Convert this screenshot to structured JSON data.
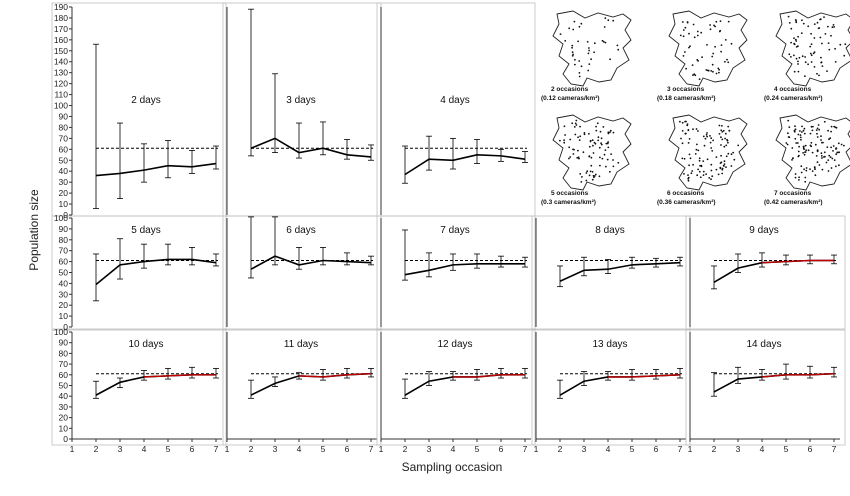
{
  "figure": {
    "ylabel": "Population size",
    "xlabel": "Sampling occasion",
    "colors": {
      "line": "#000000",
      "highlight": "#c00000",
      "frame": "#bfbfbf",
      "reference": "#000000"
    }
  },
  "maps": [
    {
      "caption1": "2 occasions",
      "caption2": "(0.12 cameras/km²)"
    },
    {
      "caption1": "3 occasions",
      "caption2": "(0.18 cameras/km²)"
    },
    {
      "caption1": "4 occasions",
      "caption2": "(0.24 cameras/km²)"
    },
    {
      "caption1": "5 occasions",
      "caption2": "(0.3 cameras/km²)"
    },
    {
      "caption1": "6 occasions",
      "caption2": "(0.36 cameras/km²)"
    },
    {
      "caption1": "7 occasions",
      "caption2": "(0.42 cameras/km²)"
    }
  ],
  "chart_data": [
    {
      "type": "line",
      "title": "2 days",
      "x": [
        2,
        3,
        4,
        5,
        6,
        7
      ],
      "ylim": [
        0,
        190
      ],
      "reference_line": 61,
      "series": [
        {
          "values": [
            36,
            38,
            41,
            45,
            44,
            47
          ],
          "upper": [
            156,
            84,
            65,
            68,
            59,
            63
          ],
          "lower": [
            6,
            15,
            30,
            34,
            38,
            42
          ]
        }
      ]
    },
    {
      "type": "line",
      "title": "3 days",
      "x": [
        2,
        3,
        4,
        5,
        6,
        7
      ],
      "ylim": [
        0,
        190
      ],
      "reference_line": 61,
      "series": [
        {
          "values": [
            61,
            70,
            57,
            61,
            55,
            53
          ],
          "upper": [
            188,
            129,
            84,
            85,
            69,
            64
          ],
          "lower": [
            54,
            57,
            52,
            55,
            51,
            50
          ]
        }
      ]
    },
    {
      "type": "line",
      "title": "4 days",
      "x": [
        2,
        3,
        4,
        5,
        6,
        7
      ],
      "ylim": [
        0,
        190
      ],
      "reference_line": 61,
      "series": [
        {
          "values": [
            37,
            51,
            50,
            55,
            54,
            51
          ],
          "upper": [
            63,
            72,
            70,
            69,
            60,
            58
          ],
          "lower": [
            29,
            41,
            42,
            47,
            49,
            48
          ]
        }
      ]
    },
    {
      "type": "line",
      "title": "5 days",
      "x": [
        2,
        3,
        4,
        5,
        6,
        7
      ],
      "ylim": [
        0,
        100
      ],
      "reference_line": 61,
      "series": [
        {
          "values": [
            39,
            57,
            60,
            62,
            62,
            59
          ],
          "upper": [
            67,
            81,
            76,
            76,
            73,
            67
          ],
          "lower": [
            24,
            44,
            54,
            57,
            57,
            56
          ]
        }
      ]
    },
    {
      "type": "line",
      "title": "6 days",
      "x": [
        2,
        3,
        4,
        5,
        6,
        7
      ],
      "ylim": [
        0,
        100
      ],
      "reference_line": 61,
      "series": [
        {
          "values": [
            53,
            65,
            57,
            61,
            60,
            59
          ],
          "upper": [
            101,
            101,
            73,
            73,
            68,
            65
          ],
          "lower": [
            45,
            57,
            53,
            57,
            57,
            57
          ]
        }
      ]
    },
    {
      "type": "line",
      "title": "7 days",
      "x": [
        2,
        3,
        4,
        5,
        6,
        7
      ],
      "ylim": [
        0,
        100
      ],
      "reference_line": 61,
      "series": [
        {
          "values": [
            48,
            52,
            57,
            58,
            58,
            58
          ],
          "upper": [
            89,
            68,
            67,
            67,
            65,
            64
          ],
          "lower": [
            43,
            46,
            52,
            54,
            55,
            55
          ]
        }
      ]
    },
    {
      "type": "line",
      "title": "8 days",
      "x": [
        2,
        3,
        4,
        5,
        6,
        7
      ],
      "ylim": [
        0,
        100
      ],
      "reference_line": 61,
      "series": [
        {
          "values": [
            42,
            52,
            53,
            57,
            58,
            59
          ],
          "upper": [
            56,
            64,
            62,
            64,
            63,
            64
          ],
          "lower": [
            37,
            47,
            49,
            54,
            55,
            56
          ]
        }
      ]
    },
    {
      "type": "line",
      "title": "9 days",
      "x": [
        2,
        3,
        4,
        5,
        6,
        7
      ],
      "ylim": [
        0,
        100
      ],
      "reference_line": 61,
      "series": [
        {
          "values": [
            41,
            54,
            59,
            60,
            61,
            61
          ],
          "upper": [
            56,
            67,
            68,
            66,
            66,
            66
          ],
          "lower": [
            35,
            50,
            55,
            57,
            58,
            58
          ]
        }
      ]
    },
    {
      "type": "line",
      "title": "10 days",
      "x": [
        2,
        3,
        4,
        5,
        6,
        7
      ],
      "ylim": [
        0,
        100
      ],
      "reference_line": 61,
      "series": [
        {
          "values": [
            41,
            53,
            58,
            59,
            60,
            60
          ],
          "upper": [
            54,
            57,
            64,
            66,
            67,
            66
          ],
          "lower": [
            38,
            48,
            55,
            56,
            57,
            57
          ]
        }
      ]
    },
    {
      "type": "line",
      "title": "11 days",
      "x": [
        2,
        3,
        4,
        5,
        6,
        7
      ],
      "ylim": [
        0,
        100
      ],
      "reference_line": 61,
      "series": [
        {
          "values": [
            41,
            52,
            59,
            58,
            60,
            61
          ],
          "upper": [
            55,
            58,
            62,
            65,
            66,
            66
          ],
          "lower": [
            38,
            49,
            56,
            55,
            57,
            58
          ]
        }
      ]
    },
    {
      "type": "line",
      "title": "12 days",
      "x": [
        2,
        3,
        4,
        5,
        6,
        7
      ],
      "ylim": [
        0,
        100
      ],
      "reference_line": 61,
      "series": [
        {
          "values": [
            41,
            54,
            58,
            58,
            60,
            60
          ],
          "upper": [
            56,
            63,
            63,
            65,
            66,
            66
          ],
          "lower": [
            38,
            50,
            55,
            55,
            57,
            57
          ]
        }
      ]
    },
    {
      "type": "line",
      "title": "13 days",
      "x": [
        2,
        3,
        4,
        5,
        6,
        7
      ],
      "ylim": [
        0,
        100
      ],
      "reference_line": 61,
      "series": [
        {
          "values": [
            41,
            54,
            58,
            58,
            59,
            60
          ],
          "upper": [
            55,
            63,
            63,
            65,
            65,
            66
          ],
          "lower": [
            38,
            50,
            55,
            55,
            56,
            57
          ]
        }
      ]
    },
    {
      "type": "line",
      "title": "14 days",
      "x": [
        2,
        3,
        4,
        5,
        6,
        7
      ],
      "ylim": [
        0,
        100
      ],
      "reference_line": 61,
      "series": [
        {
          "values": [
            44,
            56,
            58,
            60,
            60,
            61
          ],
          "upper": [
            62,
            67,
            65,
            70,
            68,
            67
          ],
          "lower": [
            40,
            52,
            55,
            56,
            57,
            58
          ]
        }
      ]
    }
  ]
}
